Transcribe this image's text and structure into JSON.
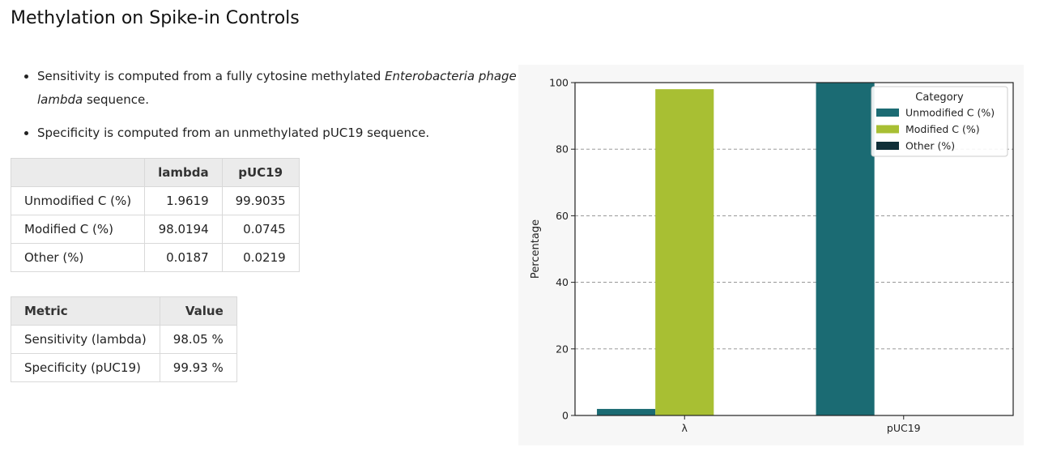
{
  "page": {
    "title": "Methylation on Spike-in Controls"
  },
  "bullets": {
    "sensitivity_prefix": "Sensitivity is computed from a fully cytosine methylated ",
    "sensitivity_italic": "Enterobacteria phage lambda",
    "sensitivity_suffix": " sequence.",
    "specificity": "Specificity is computed from an unmethylated pUC19 sequence."
  },
  "composition_table": {
    "headers": [
      "",
      "lambda",
      "pUC19"
    ],
    "rows": [
      [
        "Unmodified C (%)",
        "1.9619",
        "99.9035"
      ],
      [
        "Modified C (%)",
        "98.0194",
        "0.0745"
      ],
      [
        "Other (%)",
        "0.0187",
        "0.0219"
      ]
    ]
  },
  "metric_table": {
    "headers": [
      "Metric",
      "Value"
    ],
    "rows": [
      [
        "Sensitivity (lambda)",
        "98.05 %"
      ],
      [
        "Specificity (pUC19)",
        "99.93 %"
      ]
    ]
  },
  "chart_data": {
    "type": "bar",
    "categories": [
      "λ",
      "pUC19"
    ],
    "series": [
      {
        "name": "Unmodified C (%)",
        "color": "#1b6b73",
        "values": [
          1.9619,
          99.9035
        ]
      },
      {
        "name": "Modified C (%)",
        "color": "#a8bf33",
        "values": [
          98.0194,
          0.0745
        ]
      },
      {
        "name": "Other (%)",
        "color": "#0f2f38",
        "values": [
          0.0187,
          0.0219
        ]
      }
    ],
    "xlabel": "",
    "ylabel": "Percentage",
    "ylim": [
      0,
      100
    ],
    "yticks": [
      0,
      20,
      40,
      60,
      80,
      100
    ],
    "grid": "horizontal dashed",
    "legend_title": "Category",
    "legend_position": "top-right"
  }
}
